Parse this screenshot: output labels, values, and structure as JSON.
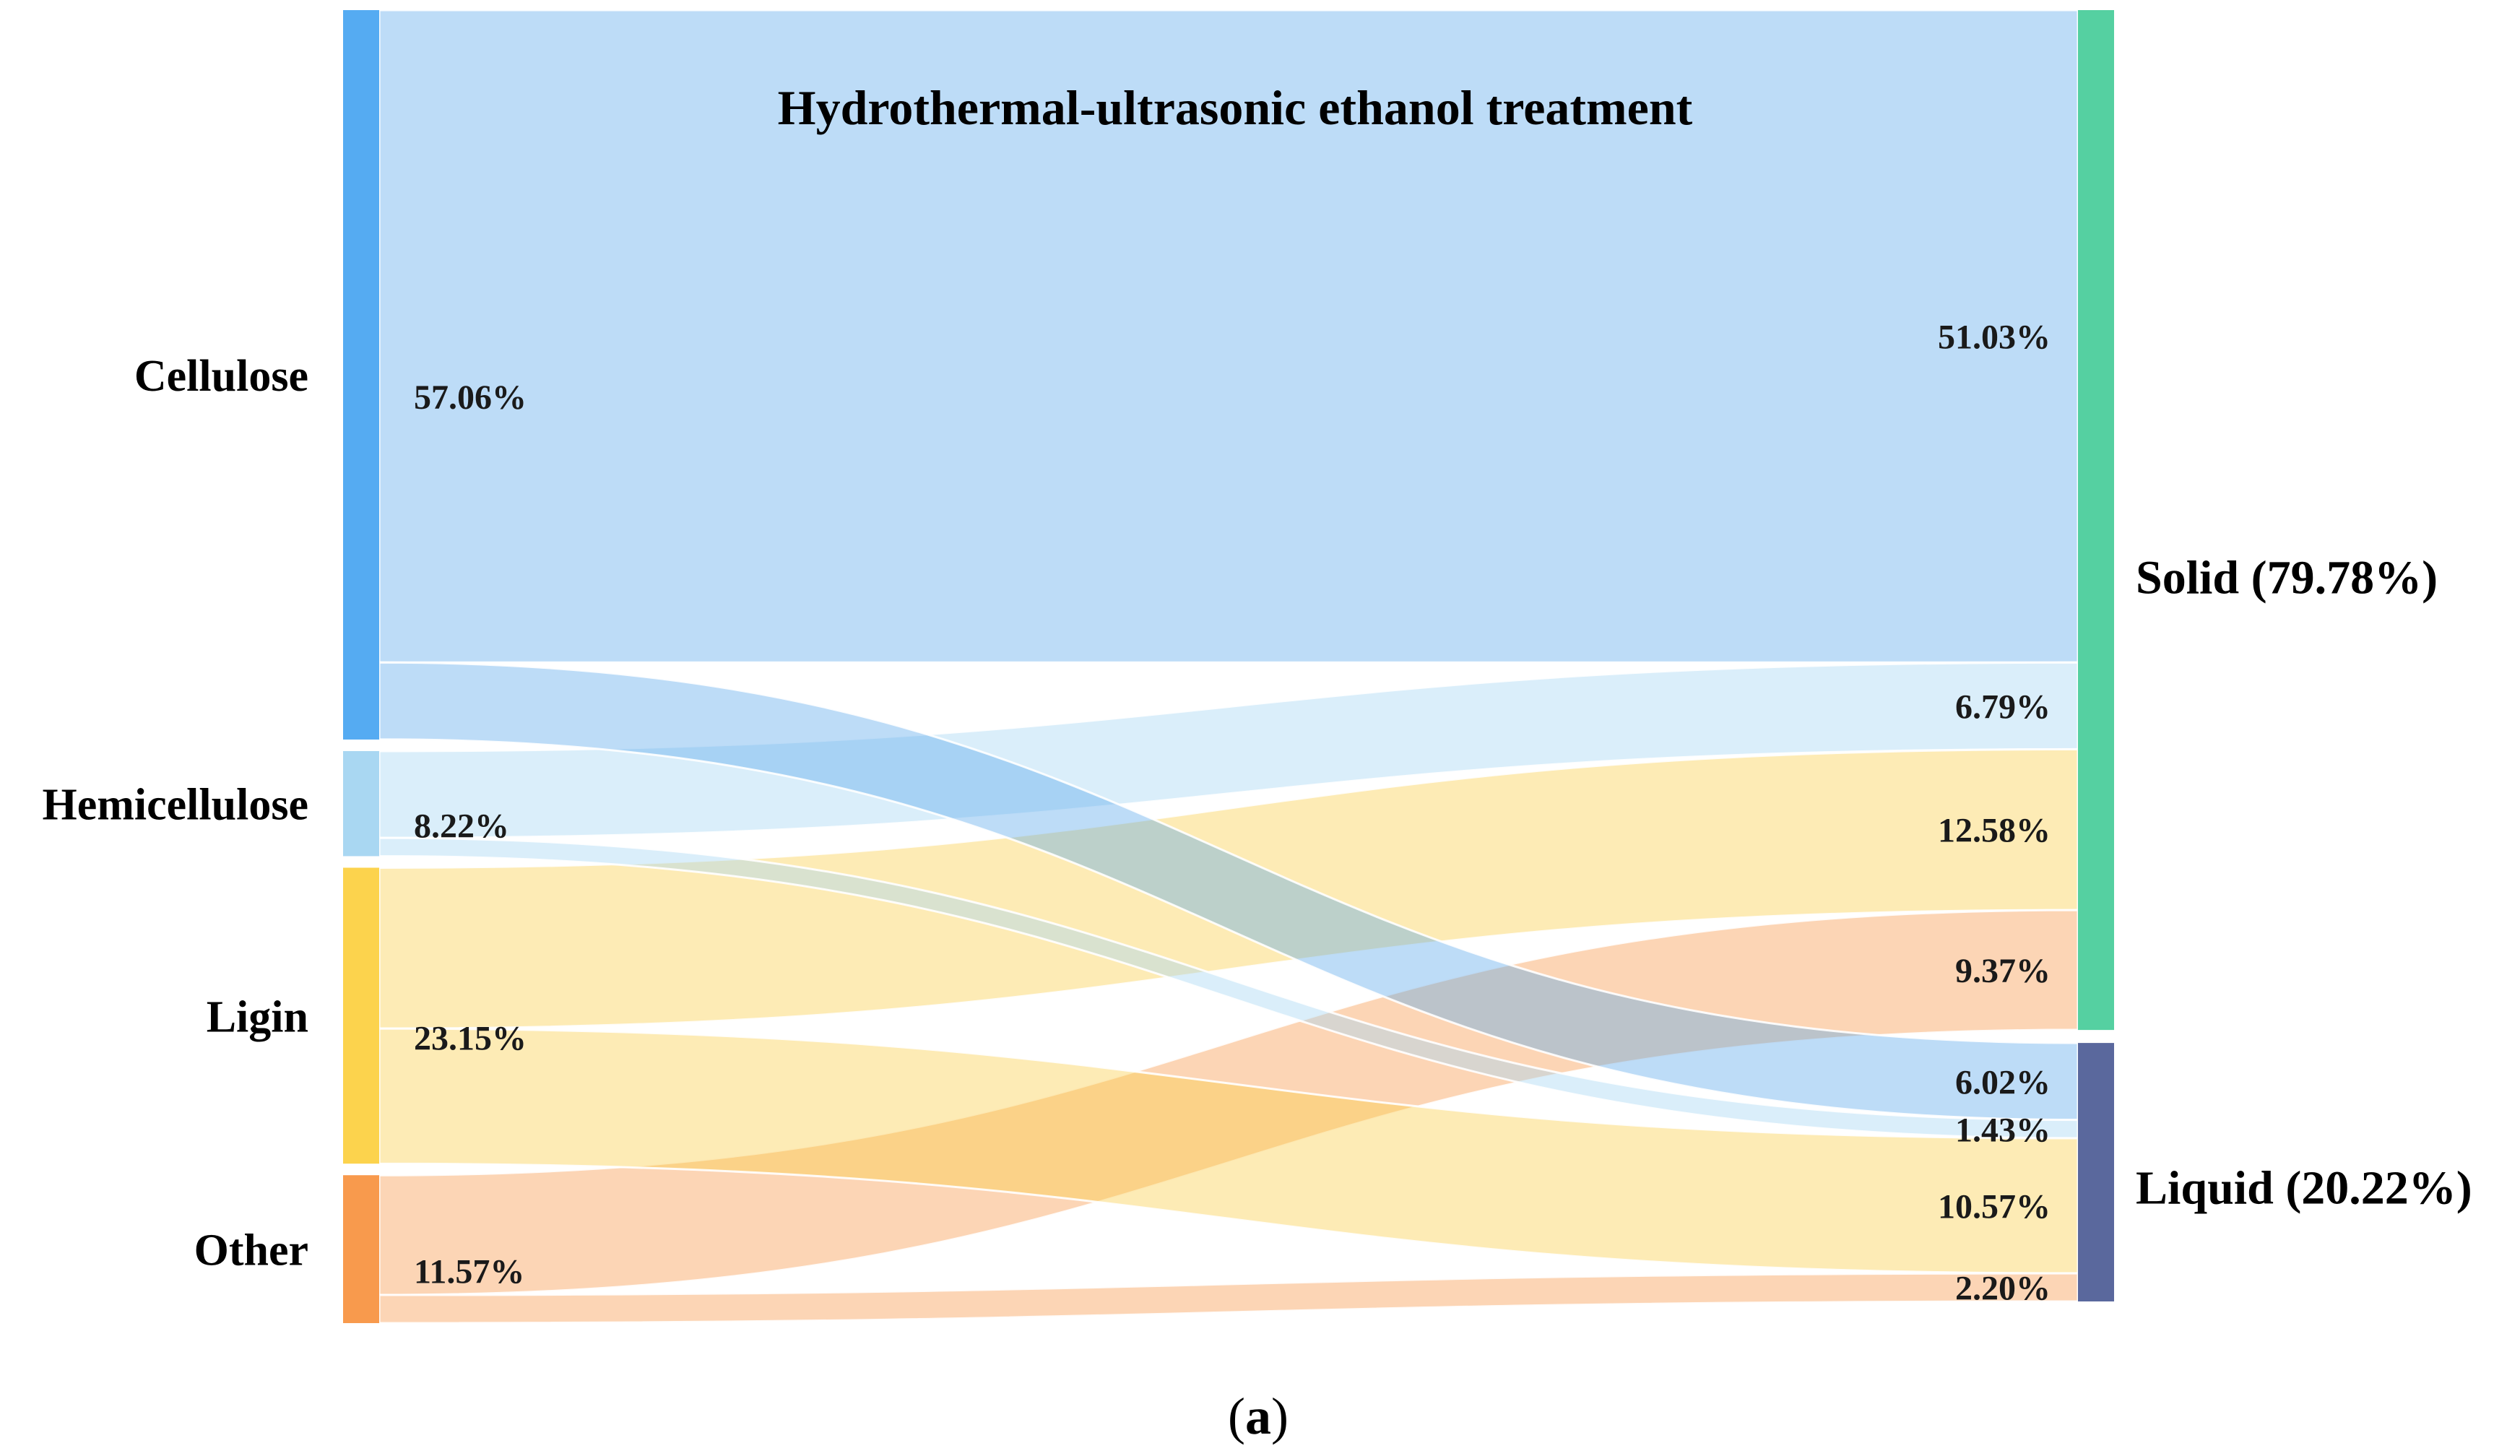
{
  "caption": {
    "open": "(",
    "letter": "a",
    "close": ")"
  },
  "chart_data": {
    "type": "sankey",
    "title": "Hydrothermal-ultrasonic ethanol treatment",
    "unit": "%",
    "value_suffix": "%",
    "legend_position": "none",
    "grid": false,
    "sources": [
      {
        "id": "cellulose",
        "label": "Cellulose",
        "value": 57.06,
        "color": "#55ABF2",
        "flow_color": "rgba(90,168,235,0.40)"
      },
      {
        "id": "hemicellulose",
        "label": "Hemicellulose",
        "value": 8.22,
        "color": "#A9D7F2",
        "flow_color": "rgba(166,215,243,0.42)"
      },
      {
        "id": "ligin",
        "label": "Ligin",
        "value": 23.15,
        "color": "#FCD34D",
        "flow_color": "rgba(250,205,70,0.40)"
      },
      {
        "id": "other",
        "label": "Other",
        "value": 11.57,
        "color": "#F89A4D",
        "flow_color": "rgba(247,150,70,0.40)"
      }
    ],
    "targets": [
      {
        "id": "solid",
        "label": "Solid",
        "value": 79.78,
        "display_label": "Solid (79.78%)",
        "color": "#55D0A1"
      },
      {
        "id": "liquid",
        "label": "Liquid",
        "value": 20.22,
        "display_label": "Liquid (20.22%)",
        "color": "#5A689D"
      }
    ],
    "links": [
      {
        "source": "cellulose",
        "target": "solid",
        "value": 51.03
      },
      {
        "source": "hemicellulose",
        "target": "solid",
        "value": 6.79
      },
      {
        "source": "ligin",
        "target": "solid",
        "value": 12.58
      },
      {
        "source": "other",
        "target": "solid",
        "value": 9.37
      },
      {
        "source": "cellulose",
        "target": "liquid",
        "value": 6.02
      },
      {
        "source": "hemicellulose",
        "target": "liquid",
        "value": 1.43
      },
      {
        "source": "ligin",
        "target": "liquid",
        "value": 10.57
      },
      {
        "source": "other",
        "target": "liquid",
        "value": 2.2
      }
    ]
  }
}
